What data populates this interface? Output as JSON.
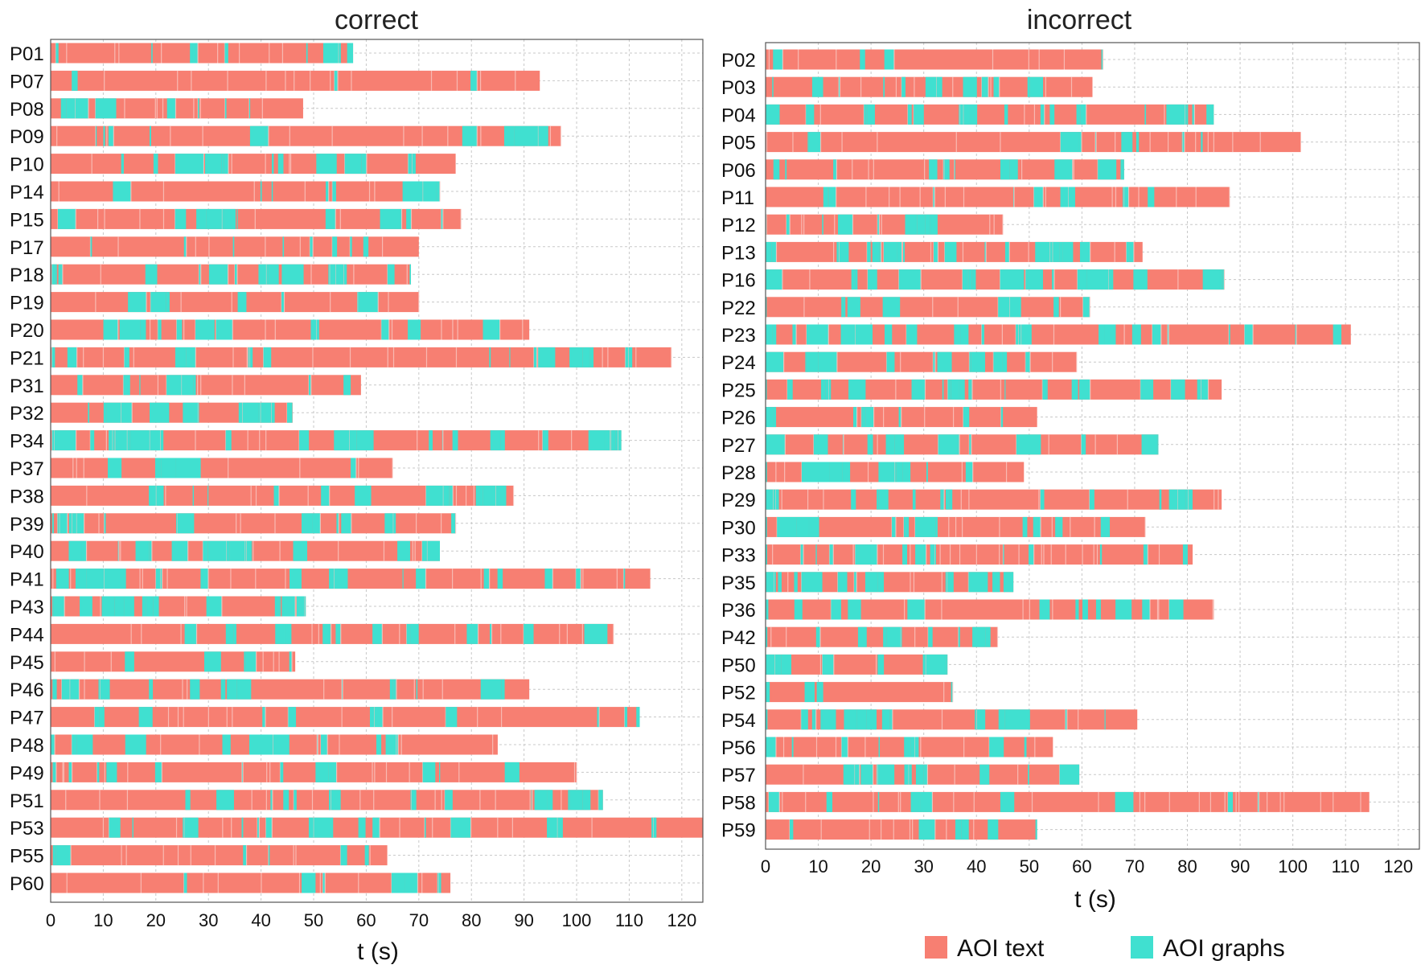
{
  "legend": [
    {
      "label": "AOI text",
      "color": "#f77f72"
    },
    {
      "label": "AOI graphs",
      "color": "#40e0d0"
    }
  ],
  "chart_data": [
    {
      "type": "timeline",
      "title": "correct",
      "xlabel": "t (s)",
      "xlim": [
        0,
        124
      ],
      "xticks": [
        "0",
        "10",
        "20",
        "30",
        "40",
        "50",
        "60",
        "70",
        "80",
        "90",
        "100",
        "110",
        "120"
      ],
      "grid": true,
      "participants": [
        {
          "id": "P01",
          "duration": 57.5,
          "text_ratio": 0.45
        },
        {
          "id": "P07",
          "duration": 93,
          "text_ratio": 0.88
        },
        {
          "id": "P08",
          "duration": 48,
          "text_ratio": 0.6
        },
        {
          "id": "P09",
          "duration": 97,
          "text_ratio": 0.7
        },
        {
          "id": "P10",
          "duration": 77,
          "text_ratio": 0.62
        },
        {
          "id": "P14",
          "duration": 74,
          "text_ratio": 0.8
        },
        {
          "id": "P15",
          "duration": 78,
          "text_ratio": 0.65
        },
        {
          "id": "P17",
          "duration": 70,
          "text_ratio": 0.75
        },
        {
          "id": "P18",
          "duration": 68.5,
          "text_ratio": 0.55
        },
        {
          "id": "P19",
          "duration": 70,
          "text_ratio": 0.75
        },
        {
          "id": "P20",
          "duration": 91,
          "text_ratio": 0.6
        },
        {
          "id": "P21",
          "duration": 118,
          "text_ratio": 0.75
        },
        {
          "id": "P31",
          "duration": 59,
          "text_ratio": 0.7
        },
        {
          "id": "P32",
          "duration": 46,
          "text_ratio": 0.5
        },
        {
          "id": "P34",
          "duration": 108.5,
          "text_ratio": 0.45
        },
        {
          "id": "P37",
          "duration": 65,
          "text_ratio": 0.75
        },
        {
          "id": "P38",
          "duration": 88,
          "text_ratio": 0.7
        },
        {
          "id": "P39",
          "duration": 77,
          "text_ratio": 0.65
        },
        {
          "id": "P40",
          "duration": 74,
          "text_ratio": 0.65
        },
        {
          "id": "P41",
          "duration": 114,
          "text_ratio": 0.65
        },
        {
          "id": "P43",
          "duration": 48.5,
          "text_ratio": 0.55
        },
        {
          "id": "P44",
          "duration": 107,
          "text_ratio": 0.7
        },
        {
          "id": "P45",
          "duration": 46.5,
          "text_ratio": 0.7
        },
        {
          "id": "P46",
          "duration": 91,
          "text_ratio": 0.65
        },
        {
          "id": "P47",
          "duration": 112,
          "text_ratio": 0.8
        },
        {
          "id": "P48",
          "duration": 85,
          "text_ratio": 0.55
        },
        {
          "id": "P49",
          "duration": 100,
          "text_ratio": 0.75
        },
        {
          "id": "P51",
          "duration": 105,
          "text_ratio": 0.7
        },
        {
          "id": "P53",
          "duration": 124,
          "text_ratio": 0.7
        },
        {
          "id": "P55",
          "duration": 64,
          "text_ratio": 0.8
        },
        {
          "id": "P60",
          "duration": 76,
          "text_ratio": 0.8
        }
      ]
    },
    {
      "type": "timeline",
      "title": "incorrect",
      "xlabel": "t (s)",
      "xlim": [
        0,
        124
      ],
      "xticks": [
        "0",
        "10",
        "20",
        "30",
        "40",
        "50",
        "60",
        "70",
        "80",
        "90",
        "100",
        "110",
        "120"
      ],
      "grid": true,
      "participants": [
        {
          "id": "P02",
          "duration": 64,
          "text_ratio": 0.75
        },
        {
          "id": "P03",
          "duration": 62,
          "text_ratio": 0.8
        },
        {
          "id": "P04",
          "duration": 85,
          "text_ratio": 0.55
        },
        {
          "id": "P05",
          "duration": 101.5,
          "text_ratio": 0.7
        },
        {
          "id": "P06",
          "duration": 68,
          "text_ratio": 0.7
        },
        {
          "id": "P11",
          "duration": 88,
          "text_ratio": 0.8
        },
        {
          "id": "P12",
          "duration": 45,
          "text_ratio": 0.7
        },
        {
          "id": "P13",
          "duration": 71.5,
          "text_ratio": 0.65
        },
        {
          "id": "P16",
          "duration": 87,
          "text_ratio": 0.55
        },
        {
          "id": "P22",
          "duration": 61.5,
          "text_ratio": 0.75
        },
        {
          "id": "P23",
          "duration": 111,
          "text_ratio": 0.6
        },
        {
          "id": "P24",
          "duration": 59,
          "text_ratio": 0.55
        },
        {
          "id": "P25",
          "duration": 86.5,
          "text_ratio": 0.7
        },
        {
          "id": "P26",
          "duration": 51.5,
          "text_ratio": 0.6
        },
        {
          "id": "P27",
          "duration": 74.5,
          "text_ratio": 0.7
        },
        {
          "id": "P28",
          "duration": 49,
          "text_ratio": 0.6
        },
        {
          "id": "P29",
          "duration": 86.5,
          "text_ratio": 0.65
        },
        {
          "id": "P30",
          "duration": 72,
          "text_ratio": 0.65
        },
        {
          "id": "P33",
          "duration": 81,
          "text_ratio": 0.8
        },
        {
          "id": "P35",
          "duration": 47,
          "text_ratio": 0.5
        },
        {
          "id": "P36",
          "duration": 85,
          "text_ratio": 0.6
        },
        {
          "id": "P42",
          "duration": 44,
          "text_ratio": 0.7
        },
        {
          "id": "P50",
          "duration": 34.5,
          "text_ratio": 0.65
        },
        {
          "id": "P52",
          "duration": 35.5,
          "text_ratio": 0.7
        },
        {
          "id": "P54",
          "duration": 70.5,
          "text_ratio": 0.65
        },
        {
          "id": "P56",
          "duration": 54.5,
          "text_ratio": 0.75
        },
        {
          "id": "P57",
          "duration": 59.5,
          "text_ratio": 0.6
        },
        {
          "id": "P58",
          "duration": 114.5,
          "text_ratio": 0.8
        },
        {
          "id": "P59",
          "duration": 51.5,
          "text_ratio": 0.75
        }
      ]
    }
  ]
}
